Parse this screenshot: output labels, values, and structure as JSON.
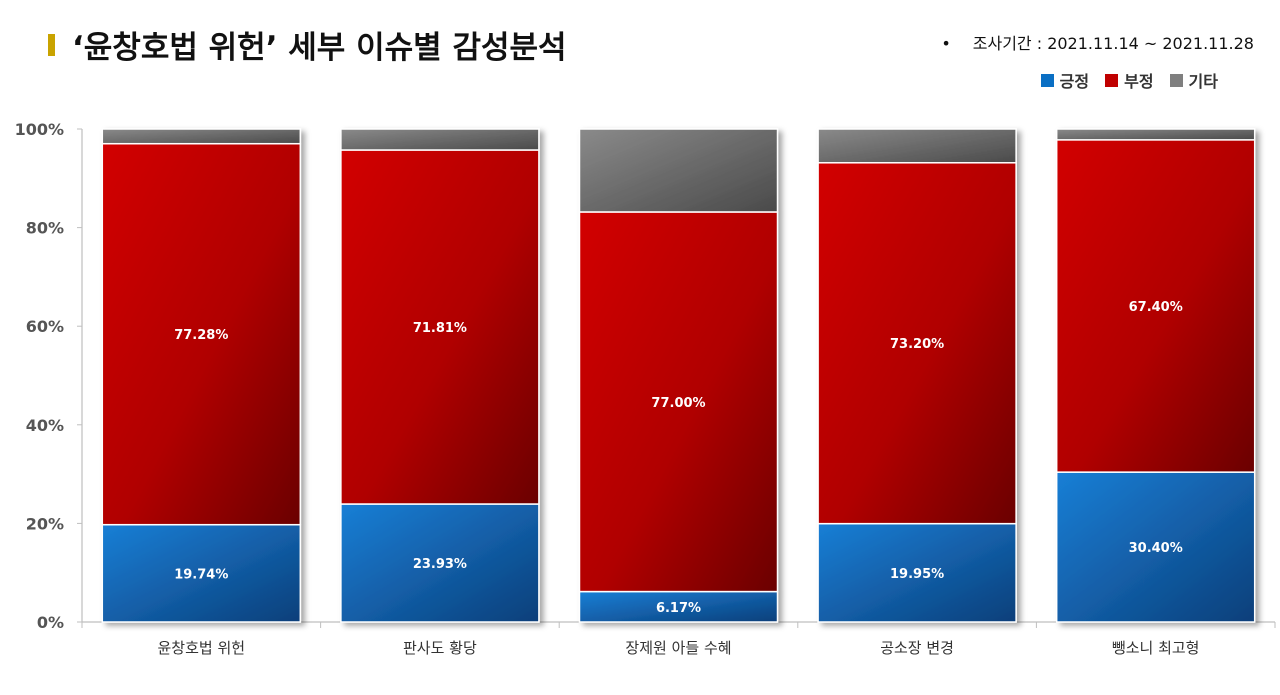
{
  "header": {
    "title": "‘윤창호법 위헌’ 세부 이슈별 감성분석",
    "period_bullet": "•",
    "period": "조사기간 : 2021.11.14 ~ 2021.11.28"
  },
  "colors": {
    "accent": "#c9a300",
    "positive": "#0a6fc4",
    "negative": "#c00000",
    "other": "#7f7f7f"
  },
  "chart_data": {
    "type": "bar",
    "stacked": true,
    "categories": [
      "윤창호법 위헌",
      "판사도 황당",
      "장제원 아들 수혜",
      "공소장 변경",
      "뺑소니 최고형"
    ],
    "series": [
      {
        "name": "긍정",
        "values": [
          19.74,
          23.93,
          6.17,
          19.95,
          30.4
        ],
        "labels": [
          "19.74%",
          "23.93%",
          "6.17%",
          "19.95%",
          "30.40%"
        ]
      },
      {
        "name": "부정",
        "values": [
          77.28,
          71.81,
          77.0,
          73.2,
          67.4
        ],
        "labels": [
          "77.28%",
          "71.81%",
          "77.00%",
          "73.20%",
          "67.40%"
        ]
      },
      {
        "name": "기타",
        "values": [
          2.98,
          4.26,
          16.83,
          6.85,
          2.2
        ]
      }
    ],
    "y_ticks": [
      "0%",
      "20%",
      "40%",
      "60%",
      "80%",
      "100%"
    ],
    "ylim": [
      0,
      100
    ],
    "legend_position": "top-right",
    "grid": false
  }
}
